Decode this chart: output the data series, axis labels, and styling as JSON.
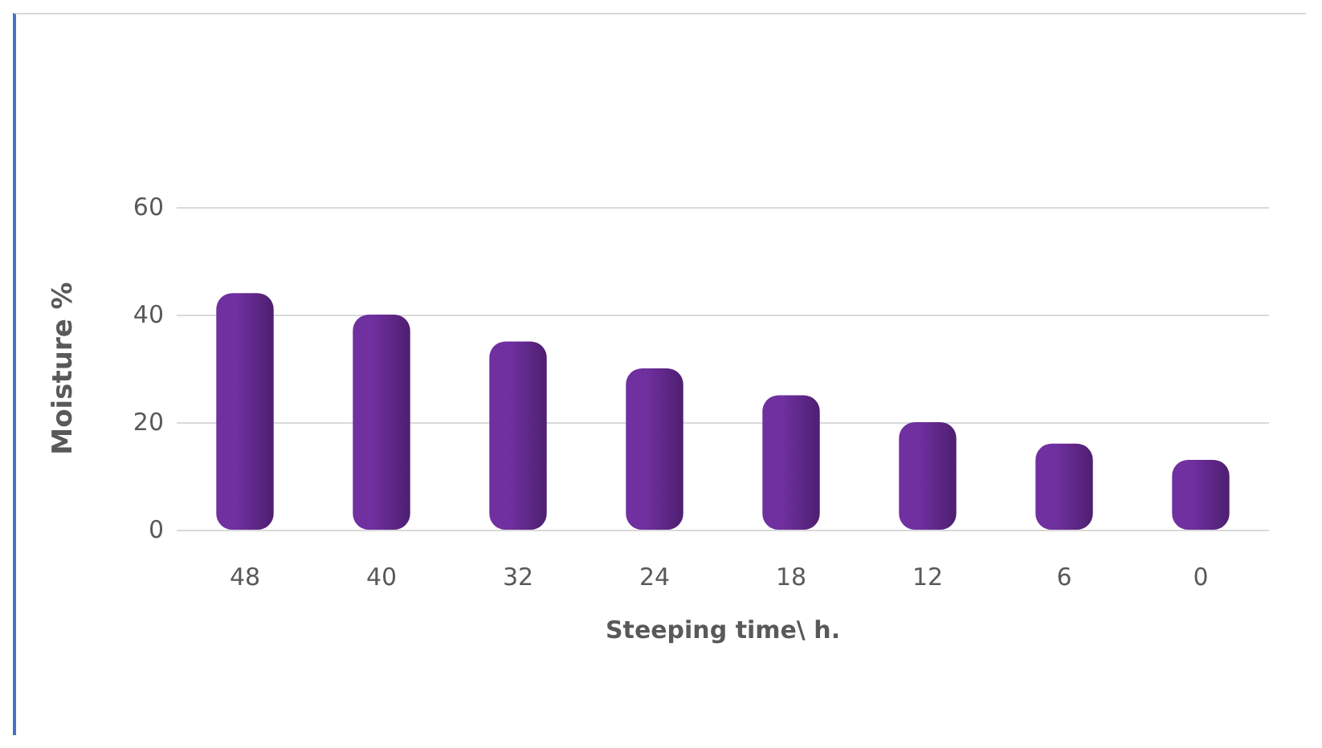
{
  "chart_data": {
    "type": "bar",
    "xlabel": "Steeping time\\ h.",
    "ylabel": "Moisture %",
    "categories": [
      "48",
      "40",
      "32",
      "24",
      "18",
      "12",
      "6",
      "0"
    ],
    "values": [
      44,
      40,
      35,
      30,
      25,
      20,
      16,
      13
    ],
    "color": "#7030a0",
    "ylim": [
      0,
      60
    ],
    "yticks": [
      0,
      20,
      40,
      60
    ],
    "grid": "y"
  }
}
